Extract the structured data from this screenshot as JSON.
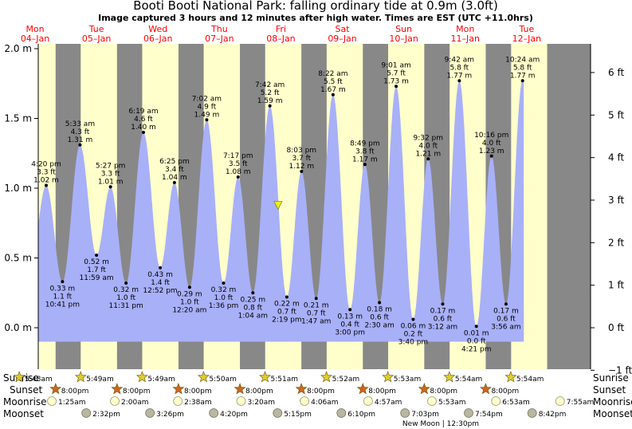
{
  "header": {
    "title": "Booti Booti National Park: falling  ordinary tide at 0.9m (3.0ft)",
    "subtitle": "Image captured 3 hours and 12 minutes after high water. Times are EST (UTC +11.0hrs)"
  },
  "days": [
    {
      "dow": "Mon",
      "date": "04–Jan"
    },
    {
      "dow": "Tue",
      "date": "05–Jan"
    },
    {
      "dow": "Wed",
      "date": "06–Jan"
    },
    {
      "dow": "Thu",
      "date": "07–Jan"
    },
    {
      "dow": "Fri",
      "date": "08–Jan"
    },
    {
      "dow": "Sat",
      "date": "09–Jan"
    },
    {
      "dow": "Sun",
      "date": "10–Jan"
    },
    {
      "dow": "Mon",
      "date": "11–Jan"
    },
    {
      "dow": "Tue",
      "date": "12–Jan"
    }
  ],
  "axes": {
    "left_ticks": [
      "0.0 m",
      "0.5 m",
      "1.0 m",
      "1.5 m",
      "2.0 m"
    ],
    "right_ticks": [
      "−1 ft",
      "0 ft",
      "1 ft",
      "2 ft",
      "3 ft",
      "4 ft",
      "5 ft",
      "6 ft"
    ]
  },
  "colors": {
    "water": "#a8b0f8",
    "day": "#ffffcc",
    "night": "#888888",
    "day_label": "#ff0000",
    "sun_icon": "#ddcc33",
    "sunset_icon": "#cc6622",
    "moonrise_icon": "#ffffcc",
    "moonset_icon": "#b8b8a0"
  },
  "chart_data": {
    "type": "area",
    "unit": "m",
    "ylim": [
      -0.12,
      2.05
    ],
    "current_level": {
      "time": "08-Jan 10:54",
      "value": 0.9,
      "ft": "3.0ft"
    },
    "extremes": [
      {
        "time": "04-Jan 16:20",
        "kind": "high",
        "m": 1.02,
        "ft": "3.3 ft",
        "label": "4:20 pm"
      },
      {
        "time": "04-Jan 22:41",
        "kind": "low",
        "m": 0.33,
        "ft": "1.1 ft",
        "label": "10:41 pm"
      },
      {
        "time": "05-Jan 05:33",
        "kind": "high",
        "m": 1.31,
        "ft": "4.3 ft",
        "label": "5:33 am"
      },
      {
        "time": "05-Jan 11:59",
        "kind": "low",
        "m": 0.52,
        "ft": "1.7 ft",
        "label": "11:59 am"
      },
      {
        "time": "05-Jan 17:27",
        "kind": "high",
        "m": 1.01,
        "ft": "3.3 ft",
        "label": "5:27 pm"
      },
      {
        "time": "05-Jan 23:31",
        "kind": "low",
        "m": 0.32,
        "ft": "1.0 ft",
        "label": "11:31 pm"
      },
      {
        "time": "06-Jan 06:19",
        "kind": "high",
        "m": 1.4,
        "ft": "4.6 ft",
        "label": "6:19 am"
      },
      {
        "time": "06-Jan 12:52",
        "kind": "low",
        "m": 0.43,
        "ft": "1.4 ft",
        "label": "12:52 pm"
      },
      {
        "time": "06-Jan 18:25",
        "kind": "high",
        "m": 1.04,
        "ft": "3.4 ft",
        "label": "6:25 pm"
      },
      {
        "time": "07-Jan 00:20",
        "kind": "low",
        "m": 0.29,
        "ft": "1.0 ft",
        "label": "12:20 am"
      },
      {
        "time": "07-Jan 07:02",
        "kind": "high",
        "m": 1.49,
        "ft": "4.9 ft",
        "label": "7:02 am"
      },
      {
        "time": "07-Jan 13:36",
        "kind": "low",
        "m": 0.32,
        "ft": "1.0 ft",
        "label": "1:36 pm"
      },
      {
        "time": "07-Jan 19:17",
        "kind": "high",
        "m": 1.08,
        "ft": "3.5 ft",
        "label": "7:17 pm"
      },
      {
        "time": "08-Jan 01:04",
        "kind": "low",
        "m": 0.25,
        "ft": "0.8 ft",
        "label": "1:04 am"
      },
      {
        "time": "08-Jan 07:42",
        "kind": "high",
        "m": 1.59,
        "ft": "5.2 ft",
        "label": "7:42 am"
      },
      {
        "time": "08-Jan 14:19",
        "kind": "low",
        "m": 0.22,
        "ft": "0.7 ft",
        "label": "2:19 pm"
      },
      {
        "time": "08-Jan 20:03",
        "kind": "high",
        "m": 1.12,
        "ft": "3.7 ft",
        "label": "8:03 pm"
      },
      {
        "time": "09-Jan 01:47",
        "kind": "low",
        "m": 0.21,
        "ft": "0.7 ft",
        "label": "1:47 am"
      },
      {
        "time": "09-Jan 08:22",
        "kind": "high",
        "m": 1.67,
        "ft": "5.5 ft",
        "label": "8:22 am"
      },
      {
        "time": "09-Jan 15:00",
        "kind": "low",
        "m": 0.13,
        "ft": "0.4 ft",
        "label": "3:00 pm"
      },
      {
        "time": "09-Jan 20:49",
        "kind": "high",
        "m": 1.17,
        "ft": "3.8 ft",
        "label": "8:49 pm"
      },
      {
        "time": "10-Jan 02:30",
        "kind": "low",
        "m": 0.18,
        "ft": "0.6 ft",
        "label": "2:30 am"
      },
      {
        "time": "10-Jan 09:01",
        "kind": "high",
        "m": 1.73,
        "ft": "5.7 ft",
        "label": "9:01 am"
      },
      {
        "time": "10-Jan 15:40",
        "kind": "low",
        "m": 0.06,
        "ft": "0.2 ft",
        "label": "3:40 pm"
      },
      {
        "time": "10-Jan 21:32",
        "kind": "high",
        "m": 1.21,
        "ft": "4.0 ft",
        "label": "9:32 pm"
      },
      {
        "time": "11-Jan 03:12",
        "kind": "low",
        "m": 0.17,
        "ft": "0.6 ft",
        "label": "3:12 am"
      },
      {
        "time": "11-Jan 09:42",
        "kind": "high",
        "m": 1.77,
        "ft": "5.8 ft",
        "label": "9:42 am"
      },
      {
        "time": "11-Jan 16:21",
        "kind": "low",
        "m": 0.01,
        "ft": "0.0 ft",
        "label": "4:21 pm"
      },
      {
        "time": "11-Jan 22:16",
        "kind": "high",
        "m": 1.23,
        "ft": "4.0 ft",
        "label": "10:16 pm"
      },
      {
        "time": "12-Jan 03:56",
        "kind": "low",
        "m": 0.17,
        "ft": "0.6 ft",
        "label": "3:56 am"
      },
      {
        "time": "12-Jan 10:24",
        "kind": "high",
        "m": 1.77,
        "ft": "5.8 ft",
        "label": "10:24 am"
      }
    ]
  },
  "almanac": {
    "row_labels": {
      "sunrise": "Sunrise",
      "sunset": "Sunset",
      "moonrise": "Moonrise",
      "moonset": "Moonset"
    },
    "sunrise": [
      "5:48am",
      "5:49am",
      "5:49am",
      "5:50am",
      "5:51am",
      "5:52am",
      "5:53am",
      "5:54am",
      "5:54am"
    ],
    "sunset": [
      "8:00pm",
      "8:00pm",
      "8:00pm",
      "8:00pm",
      "8:00pm",
      "8:00pm",
      "8:00pm",
      "8:00pm"
    ],
    "moonrise": [
      "1:25am",
      "2:00am",
      "2:38am",
      "3:20am",
      "4:06am",
      "4:57am",
      "5:53am",
      "6:53am",
      "7:55am"
    ],
    "moonset": [
      "2:32pm",
      "3:26pm",
      "4:20pm",
      "5:15pm",
      "6:10pm",
      "7:03pm",
      "7:54pm",
      "8:42pm"
    ],
    "moon_phase": "New Moon | 12:30pm"
  }
}
